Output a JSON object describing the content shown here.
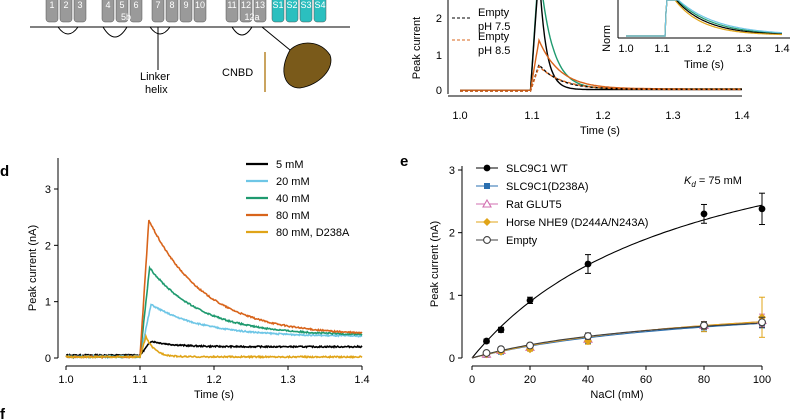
{
  "panel_letters": {
    "d": "d",
    "e": "e",
    "f": "f"
  },
  "top_left": {
    "segments": [
      "1",
      "2",
      "3",
      "4",
      "5",
      "6",
      "7",
      "8",
      "9",
      "10",
      "11",
      "12",
      "13",
      "S1",
      "S2",
      "S3",
      "S4"
    ],
    "sub_labels": [
      "5b",
      "12a"
    ],
    "linker_label": [
      "Linker",
      "helix"
    ],
    "cnbd_label": "CNBD",
    "colors": {
      "gray": "#9a9a9a",
      "teal": "#2bbfbf",
      "domain": "#7a5a1a"
    }
  },
  "top_middle": {
    "ylabel": "Peak current",
    "xlabel": "Time (s)",
    "x_ticks": [
      "1.0",
      "1.1",
      "1.2",
      "1.3",
      "1.4"
    ],
    "y_ticks": [
      "0",
      "1",
      "2"
    ],
    "legend": [
      "Empty",
      "pH 7.5",
      "Empty",
      "pH 8.5"
    ]
  },
  "top_inset": {
    "ylabel": "Norm",
    "xlabel": "Time (s)",
    "x_ticks": [
      "1.0",
      "1.1",
      "1.2",
      "1.3",
      "1.4"
    ]
  },
  "chart_data": [
    {
      "id": "d",
      "type": "line",
      "xlabel": "Time (s)",
      "ylabel": "Peak current (nA)",
      "xlim": [
        1.0,
        1.4
      ],
      "ylim": [
        0,
        3
      ],
      "x_ticks": [
        "1.0",
        "1.1",
        "1.2",
        "1.3",
        "1.4"
      ],
      "y_ticks": [
        "0",
        "1",
        "2",
        "3"
      ],
      "stim_onset": 1.1,
      "series": [
        {
          "name": "5 mM",
          "color": "#000000",
          "baseline": 0.05,
          "peak": 0.3,
          "peak_t": 1.115,
          "steady": 0.2,
          "tau": 0.03
        },
        {
          "name": "20 mM",
          "color": "#6ec6e6",
          "baseline": 0.03,
          "peak": 0.95,
          "peak_t": 1.115,
          "steady": 0.38,
          "tau": 0.07
        },
        {
          "name": "40 mM",
          "color": "#1f9a6f",
          "baseline": 0.02,
          "peak": 1.6,
          "peak_t": 1.113,
          "steady": 0.4,
          "tau": 0.07
        },
        {
          "name": "80 mM",
          "color": "#d8641b",
          "baseline": 0.02,
          "peak": 2.45,
          "peak_t": 1.112,
          "steady": 0.4,
          "tau": 0.075
        },
        {
          "name": "80 mM, D238A",
          "color": "#e0a418",
          "baseline": 0.02,
          "peak": 0.38,
          "peak_t": 1.108,
          "steady": 0.02,
          "tau": 0.012
        }
      ]
    },
    {
      "id": "e",
      "type": "scatter",
      "xlabel": "NaCl (mM)",
      "ylabel": "Peak current (nA)",
      "xlim": [
        0,
        100
      ],
      "ylim": [
        0,
        3
      ],
      "x_ticks": [
        "0",
        "20",
        "40",
        "60",
        "80",
        "100"
      ],
      "y_ticks": [
        "0",
        "1",
        "2",
        "3"
      ],
      "annotation": {
        "k": "K",
        "sub": "d",
        "rest": " = 75 mM"
      },
      "x": [
        5,
        10,
        20,
        40,
        80,
        100
      ],
      "series": [
        {
          "name": "SLC9C1 WT",
          "color": "#000000",
          "marker": "circle-filled",
          "values": [
            0.27,
            0.45,
            0.92,
            1.5,
            2.3,
            2.38
          ],
          "err": [
            0.03,
            0.04,
            0.05,
            0.15,
            0.15,
            0.25
          ],
          "fit_vmax": 4.27,
          "fit_kd": 75
        },
        {
          "name": "SLC9C1(D238A)",
          "color": "#2a6fb0",
          "marker": "square-filled",
          "values": [
            0.05,
            0.1,
            0.15,
            0.28,
            0.5,
            0.56
          ],
          "err": [
            0.02,
            0.02,
            0.03,
            0.05,
            0.07,
            0.08
          ],
          "fit_vmax": 1.05,
          "fit_kd": 90
        },
        {
          "name": "Rat GLUT5",
          "color": "#d26fb0",
          "marker": "triangle-open",
          "values": [
            0.06,
            0.12,
            0.17,
            0.3,
            0.52,
            0.6
          ],
          "err": [
            0.02,
            0.03,
            0.03,
            0.05,
            0.06,
            0.1
          ],
          "fit_vmax": 1.1,
          "fit_kd": 90
        },
        {
          "name": "Horse NHE9 (D244A/N243A)",
          "color": "#e0a418",
          "marker": "diamond-filled",
          "values": [
            0.06,
            0.1,
            0.14,
            0.27,
            0.5,
            0.65
          ],
          "err": [
            0.02,
            0.02,
            0.03,
            0.05,
            0.08,
            0.32
          ],
          "fit_vmax": 1.1,
          "fit_kd": 90
        },
        {
          "name": "Empty",
          "color": "#404040",
          "marker": "circle-open",
          "values": [
            0.08,
            0.14,
            0.2,
            0.35,
            0.52,
            0.57
          ],
          "err": [
            0.02,
            0.02,
            0.03,
            0.05,
            0.06,
            0.08
          ],
          "fit_vmax": 0.95,
          "fit_kd": 70
        }
      ]
    }
  ]
}
